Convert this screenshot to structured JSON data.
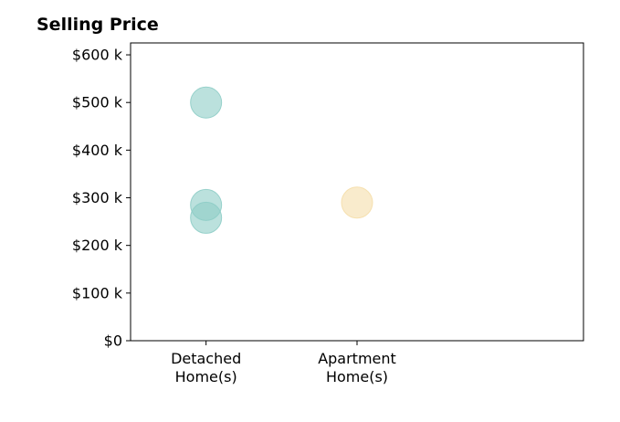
{
  "chart_data": {
    "type": "scatter",
    "title": "Selling Price",
    "xlabel": "",
    "ylabel": "",
    "categories": [
      {
        "lines": [
          "Detached",
          "Home(s)"
        ]
      },
      {
        "lines": [
          "Apartment",
          "Home(s)"
        ]
      }
    ],
    "y_ticks": [
      {
        "value": 0,
        "label": "$0"
      },
      {
        "value": 100000,
        "label": "$100 k"
      },
      {
        "value": 200000,
        "label": "$200 k"
      },
      {
        "value": 300000,
        "label": "$300 k"
      },
      {
        "value": 400000,
        "label": "$400 k"
      },
      {
        "value": 500000,
        "label": "$500 k"
      },
      {
        "value": 600000,
        "label": "$600 k"
      }
    ],
    "ylim": [
      0,
      625000
    ],
    "xlim": [
      -0.5,
      2.5
    ],
    "grid": false,
    "points": [
      {
        "category_index": 0,
        "value": 500000,
        "color": "#8ecdc6"
      },
      {
        "category_index": 0,
        "value": 285000,
        "color": "#8ecdc6"
      },
      {
        "category_index": 0,
        "value": 258000,
        "color": "#8ecdc6"
      },
      {
        "category_index": 1,
        "value": 290000,
        "color": "#f5deaa"
      }
    ]
  }
}
